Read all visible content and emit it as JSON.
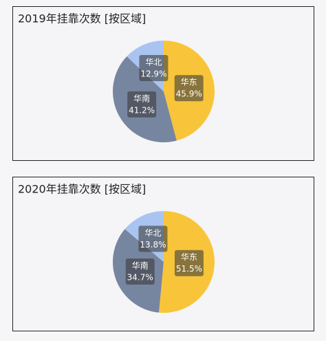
{
  "chart_data": [
    {
      "type": "pie",
      "title": "2019年挂靠次数 [按区域]",
      "categories": [
        "华东",
        "华南",
        "华北"
      ],
      "values": [
        45.9,
        41.2,
        12.9
      ],
      "value_labels": [
        "45.9%",
        "41.2%",
        "12.9%"
      ],
      "colors": [
        "#f8c53a",
        "#7786a0",
        "#a9c4f0"
      ]
    },
    {
      "type": "pie",
      "title": "2020年挂靠次数 [按区域]",
      "categories": [
        "华东",
        "华南",
        "华北"
      ],
      "values": [
        51.5,
        34.7,
        13.8
      ],
      "value_labels": [
        "51.5%",
        "34.7%",
        "13.8%"
      ],
      "colors": [
        "#f8c53a",
        "#7786a0",
        "#a9c4f0"
      ]
    }
  ]
}
